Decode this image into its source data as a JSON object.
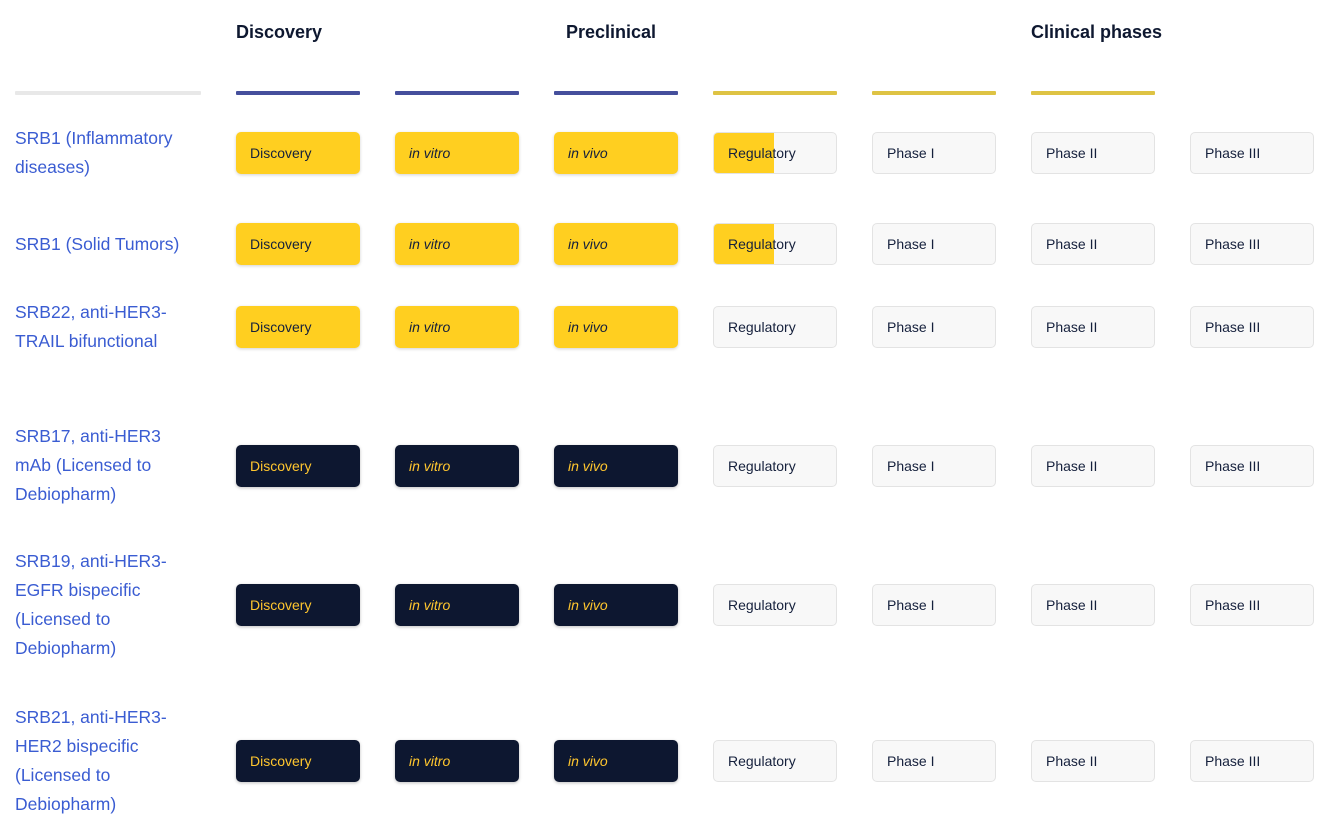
{
  "header": {
    "groups": [
      {
        "id": "discovery",
        "label": "Discovery"
      },
      {
        "id": "preclinical",
        "label": "Preclinical"
      },
      {
        "id": "clinical",
        "label": "Clinical phases"
      }
    ]
  },
  "chart_data": {
    "type": "table",
    "column_groups": [
      "Discovery",
      "Preclinical",
      "Clinical phases"
    ],
    "columns": [
      {
        "id": "discovery",
        "label": "Discovery",
        "italic": false,
        "bar_color": "#e8e8e8"
      },
      {
        "id": "in-vitro",
        "label": "in vitro",
        "italic": true,
        "bar_color": "#454f9c"
      },
      {
        "id": "in-vivo",
        "label": "in vivo",
        "italic": true,
        "bar_color": "#454f9c"
      },
      {
        "id": "regulatory",
        "label": "Regulatory",
        "italic": false,
        "bar_color": "#454f9c"
      },
      {
        "id": "phase-i",
        "label": "Phase I",
        "italic": false,
        "bar_color": "#dec344"
      },
      {
        "id": "phase-ii",
        "label": "Phase II",
        "italic": false,
        "bar_color": "#dec344"
      },
      {
        "id": "phase-iii",
        "label": "Phase III",
        "italic": false,
        "bar_color": "#dec344"
      }
    ],
    "states_legend": {
      "complete": "stage completed (yellow fill)",
      "half": "stage about 50% complete (partial yellow fill)",
      "licensed": "stage completed, licensed program (dark navy fill)",
      "pending": "stage not reached (grey outline)"
    },
    "rows": [
      {
        "label": "SRB1 (Inflammatory diseases)",
        "cells": [
          "complete",
          "complete",
          "complete",
          "half",
          "pending",
          "pending",
          "pending"
        ]
      },
      {
        "label": "SRB1 (Solid Tumors)",
        "cells": [
          "complete",
          "complete",
          "complete",
          "half",
          "pending",
          "pending",
          "pending"
        ]
      },
      {
        "label": "SRB22, anti-HER3-TRAIL bifunctional",
        "cells": [
          "complete",
          "complete",
          "complete",
          "pending",
          "pending",
          "pending",
          "pending"
        ]
      },
      {
        "label": "SRB17, anti-HER3 mAb (Licensed to Debiopharm)",
        "cells": [
          "licensed",
          "licensed",
          "licensed",
          "pending",
          "pending",
          "pending",
          "pending"
        ]
      },
      {
        "label": "SRB19, anti-HER3-EGFR bispecific (Licensed to Debiopharm)",
        "cells": [
          "licensed",
          "licensed",
          "licensed",
          "pending",
          "pending",
          "pending",
          "pending"
        ]
      },
      {
        "label": "SRB21, anti-HER3-HER2 bispecific (Licensed to Debiopharm)",
        "cells": [
          "licensed",
          "licensed",
          "licensed",
          "pending",
          "pending",
          "pending",
          "pending"
        ]
      }
    ]
  },
  "colors": {
    "complete_bg": "#ffcf20",
    "licensed_bg": "#0d1730",
    "licensed_text": "#ffc62e",
    "pending_bg": "#f8f8f8",
    "pending_border": "#e3e3e3",
    "cell_text_dark": "#15203c",
    "label_blue": "#3a5cd2",
    "header_text": "#0e1830",
    "bar_gray": "#e8e8e8",
    "bar_blue": "#454f9c",
    "bar_gold": "#dec344"
  }
}
